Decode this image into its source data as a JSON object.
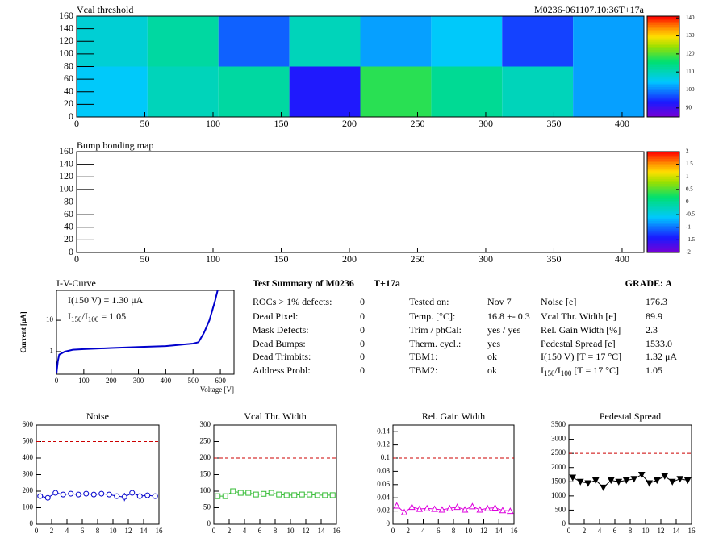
{
  "chart_data": [
    {
      "type": "heatmap",
      "title": "Vcal threshold",
      "subtitle": "M0236-061107.10:36T+17a",
      "xbins": [
        0,
        52,
        104,
        156,
        208,
        260,
        312,
        364,
        416
      ],
      "ybins": [
        0,
        80,
        160
      ],
      "values": [
        [
          105,
          110,
          112,
          93,
          118,
          113,
          110,
          102
        ],
        [
          108,
          112,
          98,
          110,
          102,
          105,
          96,
          102
        ]
      ],
      "xlim": [
        0,
        416
      ],
      "ylim": [
        0,
        160
      ],
      "xticks": [
        0,
        50,
        100,
        150,
        200,
        250,
        300,
        350,
        400
      ],
      "yticks": [
        0,
        20,
        40,
        60,
        80,
        100,
        120,
        140,
        160
      ],
      "zlim": [
        85,
        141
      ],
      "zticks": [
        90,
        100,
        110,
        120,
        130,
        140
      ]
    },
    {
      "type": "heatmap",
      "title": "Bump bonding map",
      "xlim": [
        0,
        416
      ],
      "ylim": [
        0,
        160
      ],
      "xticks": [
        0,
        50,
        100,
        150,
        200,
        250,
        300,
        350,
        400
      ],
      "yticks": [
        0,
        20,
        40,
        60,
        80,
        100,
        120,
        140,
        160
      ],
      "zlim": [
        -2,
        2
      ],
      "zticks": [
        -2,
        -1.5,
        -1,
        -0.5,
        0,
        0.5,
        1,
        1.5,
        2
      ]
    },
    {
      "type": "line",
      "title": "I-V-Curve",
      "xlabel": "Voltage [V]",
      "ylabel": "Current [μA]",
      "log_y": true,
      "x": [
        0,
        5,
        10,
        30,
        60,
        100,
        200,
        300,
        400,
        500,
        520,
        540,
        560,
        580,
        590
      ],
      "values": [
        0.2,
        0.5,
        0.8,
        1.0,
        1.15,
        1.2,
        1.3,
        1.4,
        1.5,
        1.8,
        2.0,
        4,
        10,
        40,
        90
      ],
      "color": "#0000cc",
      "xlim": [
        0,
        650
      ],
      "ylim": [
        0.19,
        90
      ],
      "xticks": [
        0,
        100,
        200,
        300,
        400,
        500,
        600
      ],
      "yticks": [
        1,
        10
      ],
      "annotations": [
        "I(150 V) = 1.30 μA"
      ],
      "ratio_label": [
        "I",
        "150",
        "/I",
        "100",
        " =  1.05"
      ]
    },
    {
      "type": "scatter",
      "title": "Noise",
      "marker": "circle",
      "color": "#0000cc",
      "x": [
        0.5,
        1.5,
        2.5,
        3.5,
        4.5,
        5.5,
        6.5,
        7.5,
        8.5,
        9.5,
        10.5,
        11.5,
        12.5,
        13.5,
        14.5,
        15.5
      ],
      "values": [
        170,
        160,
        190,
        180,
        185,
        180,
        185,
        180,
        185,
        180,
        170,
        165,
        190,
        170,
        175,
        170
      ],
      "errors": [
        15,
        15,
        15,
        15,
        15,
        15,
        15,
        15,
        15,
        15,
        15,
        25,
        15,
        15,
        15,
        15
      ],
      "threshold": 500,
      "threshold_color": "#cc0000",
      "xlim": [
        0,
        16
      ],
      "ylim": [
        0,
        600
      ],
      "xticks": [
        0,
        2,
        4,
        6,
        8,
        10,
        12,
        14,
        16
      ],
      "yticks": [
        0,
        100,
        200,
        300,
        400,
        500,
        600
      ]
    },
    {
      "type": "scatter",
      "title": "Vcal Thr. Width",
      "marker": "square",
      "color": "#33bb33",
      "x": [
        0.5,
        1.5,
        2.5,
        3.5,
        4.5,
        5.5,
        6.5,
        7.5,
        8.5,
        9.5,
        10.5,
        11.5,
        12.5,
        13.5,
        14.5,
        15.5
      ],
      "values": [
        85,
        85,
        100,
        95,
        95,
        90,
        92,
        95,
        90,
        88,
        88,
        90,
        90,
        88,
        88,
        88
      ],
      "threshold": 200,
      "threshold_color": "#cc0000",
      "xlim": [
        0,
        16
      ],
      "ylim": [
        0,
        300
      ],
      "xticks": [
        0,
        2,
        4,
        6,
        8,
        10,
        12,
        14,
        16
      ],
      "yticks": [
        0,
        50,
        100,
        150,
        200,
        250,
        300
      ]
    },
    {
      "type": "scatter",
      "title": "Rel. Gain Width",
      "marker": "triangle",
      "color": "#dd00dd",
      "x": [
        0.5,
        1.5,
        2.5,
        3.5,
        4.5,
        5.5,
        6.5,
        7.5,
        8.5,
        9.5,
        10.5,
        11.5,
        12.5,
        13.5,
        14.5,
        15.5
      ],
      "values": [
        0.028,
        0.018,
        0.026,
        0.023,
        0.024,
        0.023,
        0.022,
        0.024,
        0.026,
        0.022,
        0.027,
        0.022,
        0.024,
        0.025,
        0.021,
        0.02
      ],
      "threshold": 0.1,
      "threshold_color": "#cc0000",
      "xlim": [
        0,
        16
      ],
      "ylim": [
        0,
        0.15
      ],
      "xticks": [
        0,
        2,
        4,
        6,
        8,
        10,
        12,
        14,
        16
      ],
      "yticks": [
        0,
        0.02,
        0.04,
        0.06,
        0.08,
        0.1,
        0.12,
        0.14
      ]
    },
    {
      "type": "scatter",
      "title": "Pedestal Spread",
      "marker": "triangle-down",
      "color": "#000000",
      "x": [
        0.5,
        1.5,
        2.5,
        3.5,
        4.5,
        5.5,
        6.5,
        7.5,
        8.5,
        9.5,
        10.5,
        11.5,
        12.5,
        13.5,
        14.5,
        15.5
      ],
      "values": [
        1650,
        1500,
        1450,
        1550,
        1300,
        1550,
        1500,
        1550,
        1600,
        1750,
        1450,
        1550,
        1700,
        1500,
        1600,
        1550
      ],
      "threshold": 2500,
      "threshold_color": "#cc0000",
      "xlim": [
        0,
        16
      ],
      "ylim": [
        0,
        3500
      ],
      "xticks": [
        0,
        2,
        4,
        6,
        8,
        10,
        12,
        14,
        16
      ],
      "yticks": [
        0,
        500,
        1000,
        1500,
        2000,
        2500,
        3000,
        3500
      ]
    }
  ],
  "summary": {
    "title": "Test Summary of M0236",
    "tag": "T+17a",
    "grade": "GRADE:  A",
    "left": [
      [
        "ROCs > 1% defects:",
        "0"
      ],
      [
        "Dead Pixel:",
        "0"
      ],
      [
        "Mask Defects:",
        "0"
      ],
      [
        "Dead Bumps:",
        "0"
      ],
      [
        "Dead Trimbits:",
        "0"
      ],
      [
        "Address Probl:",
        "0"
      ]
    ],
    "middle": [
      [
        "Tested on:",
        "Nov 7"
      ],
      [
        "Temp. [°C]:",
        "16.8 +- 0.3"
      ],
      [
        "Trim / phCal:",
        "yes / yes"
      ],
      [
        "Therm. cycl.:",
        "yes"
      ],
      [
        "TBM1:",
        "ok"
      ],
      [
        "TBM2:",
        "ok"
      ]
    ],
    "right": [
      [
        "Noise [e]",
        "176.3"
      ],
      [
        "Vcal Thr. Width [e]",
        "89.9"
      ],
      [
        "Rel. Gain Width [%]",
        "2.3"
      ],
      [
        "Pedestal Spread [e]",
        "1533.0"
      ],
      [
        "I(150 V) [T = 17 °C]",
        "1.32 μA"
      ]
    ],
    "ratio_row": [
      [
        "I",
        "150",
        "/I",
        "100",
        "  [T = 17 °C]"
      ],
      "1.05"
    ]
  }
}
